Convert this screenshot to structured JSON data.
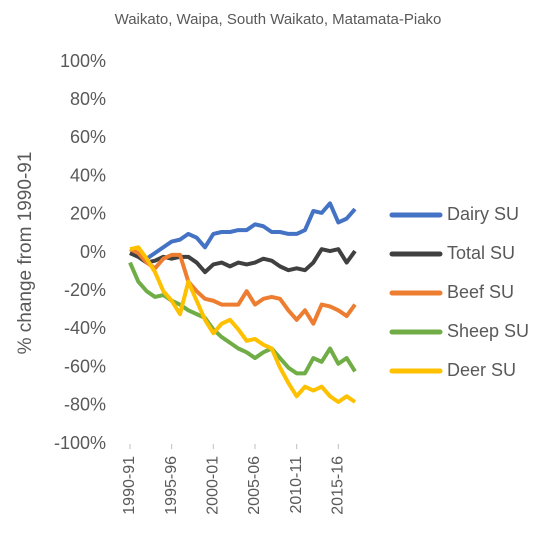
{
  "chart_data": {
    "type": "line",
    "title": "Waikato, Waipa, South Waikato, Matamata-Piako",
    "ylabel": "% change from 1990-91",
    "categories": [
      "1990-91",
      null,
      null,
      null,
      null,
      "1995-96",
      null,
      null,
      null,
      null,
      "2000-01",
      null,
      null,
      null,
      null,
      "2005-06",
      null,
      null,
      null,
      null,
      "2010-11",
      null,
      null,
      null,
      null,
      "2015-16",
      null,
      null
    ],
    "ylim": [
      -100,
      100
    ],
    "yticks": [
      {
        "value": 100,
        "label": "100%"
      },
      {
        "value": 80,
        "label": "80%"
      },
      {
        "value": 60,
        "label": "60%"
      },
      {
        "value": 40,
        "label": "40%"
      },
      {
        "value": 20,
        "label": "20%"
      },
      {
        "value": 0,
        "label": "0%"
      },
      {
        "value": -20,
        "label": "-20%"
      },
      {
        "value": -40,
        "label": "-40%"
      },
      {
        "value": -60,
        "label": "-60%"
      },
      {
        "value": -80,
        "label": "-80%"
      },
      {
        "value": -100,
        "label": "-100%"
      }
    ],
    "grid": false,
    "legend": "right",
    "series": [
      {
        "name": "Dairy SU",
        "color": "#4472c4",
        "values": [
          0,
          -2,
          -3,
          0,
          3,
          6,
          7,
          10,
          8,
          3,
          10,
          11,
          11,
          12,
          12,
          15,
          14,
          11,
          11,
          10,
          10,
          12,
          22,
          21,
          26,
          16,
          18,
          23
        ]
      },
      {
        "name": "Total SU",
        "color": "#404040",
        "values": [
          0,
          -2,
          -5,
          -4,
          -2,
          -3,
          -2,
          -2,
          -5,
          -10,
          -6,
          -5,
          -7,
          -5,
          -6,
          -5,
          -3,
          -4,
          -7,
          -9,
          -8,
          -9,
          -5,
          2,
          1,
          2,
          -5,
          1
        ]
      },
      {
        "name": "Beef SU",
        "color": "#ed7d31",
        "values": [
          2,
          0,
          -5,
          -8,
          -3,
          -1,
          -1,
          -15,
          -20,
          -24,
          -25,
          -27,
          -27,
          -27,
          -20,
          -27,
          -24,
          -23,
          -24,
          -30,
          -35,
          -30,
          -37,
          -27,
          -28,
          -30,
          -33,
          -27
        ]
      },
      {
        "name": "Sheep SU",
        "color": "#70ad47",
        "values": [
          -5,
          -15,
          -20,
          -23,
          -22,
          -25,
          -27,
          -30,
          -32,
          -34,
          -40,
          -44,
          -47,
          -50,
          -52,
          -55,
          -52,
          -50,
          -55,
          -60,
          -63,
          -63,
          -55,
          -57,
          -50,
          -58,
          -55,
          -62
        ]
      },
      {
        "name": "Deer SU",
        "color": "#ffc000",
        "values": [
          2,
          3,
          -3,
          -10,
          -20,
          -25,
          -32,
          -15,
          -25,
          -35,
          -42,
          -37,
          -35,
          -40,
          -46,
          -45,
          -48,
          -50,
          -60,
          -68,
          -75,
          -70,
          -72,
          -70,
          -75,
          -78,
          -75,
          -78
        ]
      }
    ]
  }
}
